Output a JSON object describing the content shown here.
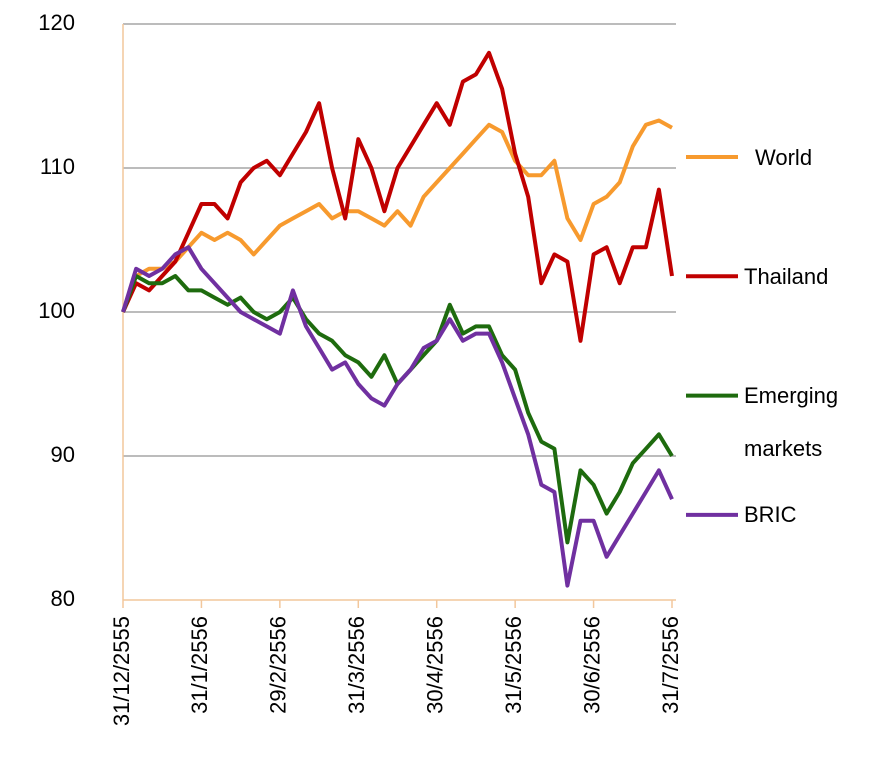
{
  "chart_data": {
    "type": "line",
    "categories": [
      "31/12/2555",
      null,
      null,
      null,
      null,
      null,
      "31/1/2556",
      null,
      null,
      null,
      null,
      null,
      "29/2/2556",
      null,
      null,
      null,
      null,
      null,
      "31/3/2556",
      null,
      null,
      null,
      null,
      null,
      "30/4/2556",
      null,
      null,
      null,
      null,
      null,
      "31/5/2556",
      null,
      null,
      null,
      null,
      null,
      "30/6/2556",
      null,
      null,
      null,
      null,
      null,
      "31/7/2556"
    ],
    "series": [
      {
        "name": "World",
        "color": "#f79a2e",
        "values": [
          100,
          102.5,
          103,
          103,
          103.5,
          104.5,
          105.5,
          105,
          105.5,
          105,
          104,
          105,
          106,
          106.5,
          107,
          107.5,
          106.5,
          107,
          107,
          106.5,
          106,
          107,
          106,
          108,
          109,
          110,
          111,
          112,
          113,
          112.5,
          110.5,
          109.5,
          109.5,
          110.5,
          106.5,
          105,
          107.5,
          108,
          109,
          111.5,
          113,
          113.3,
          112.8
        ]
      },
      {
        "name": "Thailand",
        "color": "#c00000",
        "values": [
          100,
          102,
          101.5,
          102.5,
          103.5,
          105.5,
          107.5,
          107.5,
          106.5,
          109,
          110,
          110.5,
          109.5,
          111,
          112.5,
          114.5,
          110,
          106.5,
          112,
          110,
          107,
          110,
          111.5,
          113,
          114.5,
          113,
          116,
          116.5,
          118,
          115.5,
          111,
          108,
          102,
          104,
          103.5,
          98,
          104,
          104.5,
          102,
          104.5,
          104.5,
          108.5,
          102.5
        ]
      },
      {
        "name": "Emerging markets",
        "color": "#1e6b0e",
        "values": [
          100,
          102.5,
          102,
          102,
          102.5,
          101.5,
          101.5,
          101,
          100.5,
          101,
          100,
          99.5,
          100,
          101,
          99.5,
          98.5,
          98,
          97,
          96.5,
          95.5,
          97,
          95,
          96,
          97,
          98,
          100.5,
          98.5,
          99,
          99,
          97,
          96,
          93,
          91,
          90.5,
          84,
          89,
          88,
          86,
          87.5,
          89.5,
          90.5,
          91.5,
          90
        ]
      },
      {
        "name": "BRIC",
        "color": "#7030a0",
        "values": [
          100,
          103,
          102.5,
          103,
          104,
          104.5,
          103,
          102,
          101,
          100,
          99.5,
          99,
          98.5,
          101.5,
          99,
          97.5,
          96,
          96.5,
          95,
          94,
          93.5,
          95,
          96,
          97.5,
          98,
          99.5,
          98,
          98.5,
          98.5,
          96.5,
          94,
          91.5,
          88,
          87.5,
          81,
          85.5,
          85.5,
          83,
          84.5,
          86,
          87.5,
          89,
          87
        ]
      }
    ],
    "ylim": [
      80,
      120
    ],
    "yticks": [
      80,
      90,
      100,
      110,
      120
    ],
    "grid": true,
    "legend": "right"
  }
}
